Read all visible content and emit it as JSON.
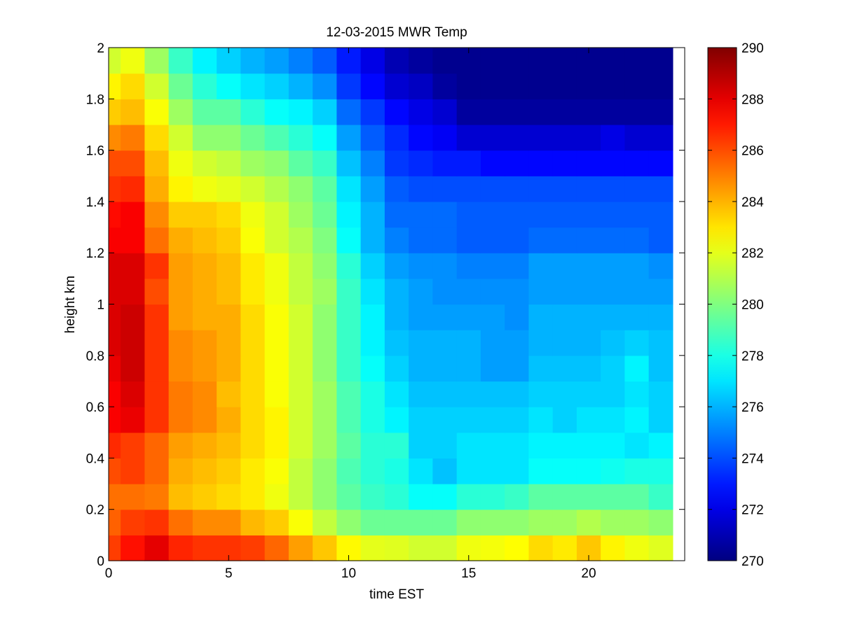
{
  "chart_data": {
    "type": "heatmap",
    "title": "12-03-2015 MWR Temp",
    "xlabel": "time EST",
    "ylabel": "height km",
    "xlim": [
      0,
      24
    ],
    "ylim": [
      0,
      2
    ],
    "xticks": [
      "0",
      "5",
      "10",
      "15",
      "20"
    ],
    "yticks": [
      "0",
      "0.2",
      "0.4",
      "0.6",
      "0.8",
      "1",
      "1.2",
      "1.4",
      "1.6",
      "1.8",
      "2"
    ],
    "colorbar": {
      "colormap": "jet",
      "min": 270,
      "max": 290,
      "ticks": [
        "270",
        "272",
        "274",
        "276",
        "278",
        "280",
        "282",
        "284",
        "286",
        "288",
        "290"
      ]
    },
    "x": [
      0,
      1,
      2,
      3,
      4,
      5,
      6,
      7,
      8,
      9,
      10,
      11,
      12,
      13,
      14,
      15,
      16,
      17,
      18,
      19,
      20,
      21,
      22,
      23
    ],
    "y": [
      0,
      0.1,
      0.2,
      0.3,
      0.4,
      0.5,
      0.6,
      0.7,
      0.8,
      0.9,
      1.0,
      1.1,
      1.2,
      1.3,
      1.4,
      1.5,
      1.6,
      1.7,
      1.8,
      1.9
    ],
    "values": [
      [
        286.3,
        287.2,
        288.0,
        286.8,
        286.5,
        286.5,
        286.3,
        285.5,
        284.4,
        283.6,
        282.6,
        282.0,
        281.9,
        281.6,
        281.6,
        282.2,
        282.3,
        282.5,
        283.2,
        282.9,
        283.6,
        282.7,
        282.2,
        281.9
      ],
      [
        285.6,
        286.3,
        286.5,
        285.3,
        284.8,
        284.8,
        283.9,
        283.5,
        282.4,
        281.3,
        280.3,
        279.6,
        279.6,
        279.6,
        279.6,
        280.3,
        280.3,
        280.3,
        280.6,
        280.6,
        281.0,
        280.6,
        280.6,
        280.3
      ],
      [
        285.3,
        285.3,
        285.1,
        283.8,
        283.5,
        283.2,
        282.9,
        282.2,
        281.3,
        280.3,
        279.3,
        278.6,
        278.3,
        277.6,
        277.6,
        278.3,
        278.3,
        278.6,
        279.3,
        279.3,
        279.3,
        279.3,
        279.3,
        278.6
      ],
      [
        286.0,
        286.3,
        285.5,
        284.1,
        283.8,
        283.5,
        282.9,
        282.4,
        281.3,
        280.3,
        279.0,
        278.3,
        278.0,
        277.0,
        276.3,
        277.0,
        277.0,
        277.0,
        277.6,
        277.6,
        277.6,
        277.8,
        278.0,
        278.0
      ],
      [
        286.7,
        286.3,
        285.5,
        284.4,
        284.1,
        283.8,
        283.2,
        282.7,
        281.6,
        280.6,
        279.3,
        278.3,
        278.3,
        276.6,
        276.6,
        277.0,
        277.0,
        277.0,
        277.3,
        277.3,
        277.3,
        277.3,
        277.0,
        277.3
      ],
      [
        287.6,
        287.9,
        286.5,
        285.1,
        284.8,
        284.1,
        283.2,
        282.7,
        281.6,
        280.6,
        279.0,
        278.0,
        277.3,
        276.6,
        276.6,
        276.6,
        276.6,
        276.6,
        277.0,
        276.6,
        277.0,
        277.0,
        277.3,
        276.6
      ],
      [
        287.6,
        288.2,
        286.5,
        285.1,
        284.8,
        283.8,
        283.2,
        282.4,
        281.6,
        280.6,
        279.0,
        278.0,
        277.0,
        276.3,
        276.3,
        276.3,
        276.3,
        276.3,
        276.6,
        276.6,
        276.6,
        276.6,
        277.0,
        276.6
      ],
      [
        287.9,
        288.5,
        286.5,
        284.8,
        284.5,
        284.1,
        283.2,
        282.4,
        281.6,
        280.3,
        278.6,
        277.6,
        276.6,
        276.0,
        276.0,
        276.0,
        275.6,
        275.6,
        276.3,
        276.3,
        276.3,
        276.6,
        277.3,
        276.3
      ],
      [
        288.2,
        288.5,
        286.5,
        284.8,
        284.5,
        284.1,
        283.2,
        282.4,
        281.6,
        280.3,
        278.6,
        277.3,
        276.3,
        276.0,
        276.0,
        276.0,
        275.6,
        275.6,
        276.0,
        276.0,
        276.0,
        276.3,
        276.6,
        276.3
      ],
      [
        288.2,
        288.5,
        286.5,
        284.4,
        284.1,
        284.1,
        283.2,
        282.4,
        281.6,
        280.3,
        278.6,
        277.3,
        276.0,
        275.6,
        275.6,
        275.6,
        275.6,
        275.3,
        276.0,
        276.0,
        276.0,
        276.0,
        276.0,
        276.0
      ],
      [
        288.2,
        288.2,
        286.0,
        284.4,
        284.1,
        283.8,
        282.9,
        282.2,
        281.3,
        280.6,
        278.6,
        277.0,
        276.0,
        275.6,
        275.3,
        275.3,
        275.3,
        275.3,
        275.6,
        275.6,
        275.6,
        275.6,
        275.6,
        275.6
      ],
      [
        288.2,
        288.2,
        286.5,
        284.4,
        284.1,
        283.8,
        282.9,
        282.2,
        281.3,
        280.3,
        278.3,
        276.6,
        275.6,
        275.3,
        275.3,
        275.0,
        275.0,
        275.0,
        275.6,
        275.6,
        275.6,
        275.6,
        275.6,
        275.3
      ],
      [
        287.6,
        287.6,
        285.3,
        284.1,
        283.8,
        283.5,
        282.4,
        281.6,
        281.0,
        280.0,
        277.6,
        276.0,
        275.0,
        274.6,
        274.6,
        274.3,
        274.3,
        274.3,
        274.6,
        274.6,
        274.6,
        274.6,
        274.6,
        274.3
      ],
      [
        287.3,
        287.6,
        284.8,
        283.5,
        283.5,
        283.2,
        282.2,
        281.6,
        280.6,
        279.6,
        277.3,
        276.0,
        274.6,
        274.6,
        274.6,
        274.3,
        274.3,
        274.3,
        274.3,
        274.3,
        274.3,
        274.3,
        274.3,
        274.3
      ],
      [
        286.5,
        286.7,
        284.1,
        282.7,
        282.2,
        282.0,
        281.6,
        281.0,
        280.3,
        279.3,
        277.0,
        275.6,
        274.3,
        274.0,
        274.0,
        274.0,
        274.0,
        274.0,
        274.0,
        274.0,
        274.0,
        274.0,
        274.0,
        274.0
      ],
      [
        286.0,
        286.0,
        283.8,
        282.2,
        281.6,
        281.3,
        280.6,
        280.3,
        279.3,
        278.6,
        276.3,
        275.0,
        273.6,
        273.3,
        273.0,
        273.0,
        272.6,
        272.6,
        272.6,
        272.6,
        272.6,
        272.6,
        272.6,
        272.6
      ],
      [
        284.8,
        285.1,
        283.2,
        281.6,
        280.3,
        280.3,
        279.6,
        279.0,
        278.3,
        277.6,
        275.6,
        274.3,
        273.3,
        272.6,
        272.3,
        271.6,
        271.6,
        271.6,
        271.6,
        271.6,
        271.6,
        272.0,
        271.6,
        271.6
      ],
      [
        283.5,
        283.8,
        282.4,
        280.6,
        279.3,
        279.3,
        278.3,
        277.6,
        277.3,
        276.6,
        274.6,
        273.6,
        272.6,
        272.0,
        271.6,
        270.6,
        270.6,
        270.6,
        270.6,
        270.6,
        270.6,
        270.6,
        270.6,
        270.6
      ],
      [
        282.7,
        283.2,
        281.6,
        279.6,
        278.3,
        277.6,
        277.0,
        276.6,
        276.0,
        275.3,
        273.6,
        272.6,
        271.6,
        271.3,
        270.6,
        270.3,
        270.3,
        270.3,
        270.3,
        270.3,
        270.3,
        270.3,
        270.3,
        270.3
      ],
      [
        281.6,
        282.2,
        280.6,
        278.6,
        277.3,
        276.6,
        276.0,
        275.6,
        275.0,
        274.3,
        273.0,
        272.0,
        271.0,
        270.6,
        270.3,
        270.3,
        270.3,
        270.3,
        270.3,
        270.3,
        270.3,
        270.3,
        270.3,
        270.3
      ]
    ]
  }
}
